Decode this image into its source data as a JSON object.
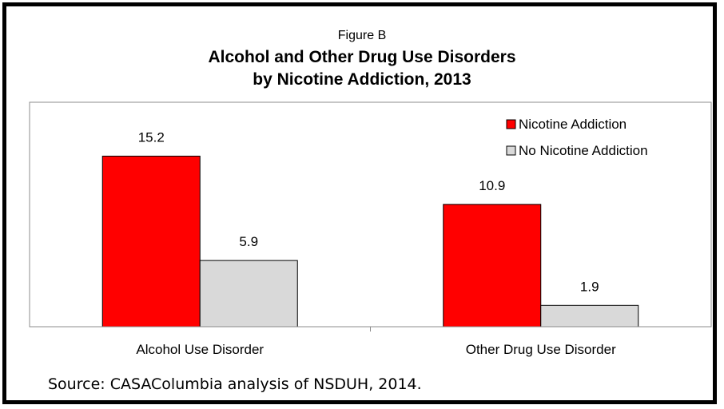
{
  "figure_label": "Figure B",
  "title_line1": "Alcohol and Other Drug Use Disorders",
  "title_line2": "by Nicotine Addiction, 2013",
  "source": "Source:  CASAColumbia analysis of NSDUH, 2014.",
  "chart_data": {
    "type": "bar",
    "title": "Alcohol and Other Drug Use Disorders by Nicotine Addiction, 2013",
    "categories": [
      "Alcohol Use Disorder",
      "Other Drug Use Disorder"
    ],
    "series": [
      {
        "name": "Nicotine Addiction",
        "values": [
          15.2,
          10.9
        ],
        "color": "#ff0000"
      },
      {
        "name": "No Nicotine Addiction",
        "values": [
          5.9,
          1.9
        ],
        "color": "#d9d9d9"
      }
    ],
    "xlabel": "",
    "ylabel": "",
    "ylim": [
      0,
      20
    ],
    "grid": false,
    "legend": "top-right",
    "data_labels": true
  }
}
